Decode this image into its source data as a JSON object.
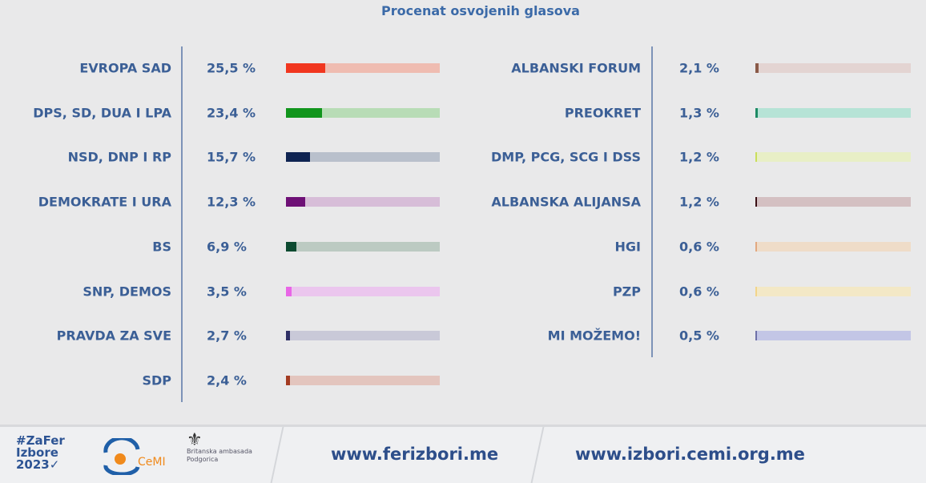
{
  "title": "Procenat osvojenih glasova",
  "chart_data": {
    "type": "bar",
    "title": "Procenat osvojenih glasova",
    "xlim": [
      0,
      100
    ],
    "unit": "%",
    "series": [
      {
        "category": "EVROPA SAD",
        "value": 25.5,
        "label": "25,5 %",
        "color": "#f1361f",
        "track": "#efbcb1"
      },
      {
        "category": "DPS, SD, DUA I LPA",
        "value": 23.4,
        "label": "23,4 %",
        "color": "#11951c",
        "track": "#b8dcb6"
      },
      {
        "category": "NSD, DNP I RP",
        "value": 15.7,
        "label": "15,7 %",
        "color": "#0f2452",
        "track": "#b9c0cc"
      },
      {
        "category": "DEMOKRATE I URA",
        "value": 12.3,
        "label": "12,3 %",
        "color": "#6e1076",
        "track": "#d7bdd8"
      },
      {
        "category": "BS",
        "value": 6.9,
        "label": "6,9 %",
        "color": "#0c4a30",
        "track": "#bccac2"
      },
      {
        "category": "SNP, DEMOS",
        "value": 3.5,
        "label": "3,5 %",
        "color": "#e866e6",
        "track": "#ebc6ee"
      },
      {
        "category": "PRAVDA ZA SVE",
        "value": 2.7,
        "label": "2,7 %",
        "color": "#2f3066",
        "track": "#c9c9d8"
      },
      {
        "category": "SDP",
        "value": 2.4,
        "label": "2,4 %",
        "color": "#a33b22",
        "track": "#e3c5be"
      },
      {
        "category": "ALBANSKI FORUM",
        "value": 2.1,
        "label": "2,1 %",
        "color": "#8a5a48",
        "track": "#e3d4d2"
      },
      {
        "category": "PREOKRET",
        "value": 1.3,
        "label": "1,3 %",
        "color": "#1d8a64",
        "track": "#b6e3d6"
      },
      {
        "category": "DMP, PCG, SCG I DSS",
        "value": 1.2,
        "label": "1,2 %",
        "color": "#c9de5c",
        "track": "#e8efc6"
      },
      {
        "category": "ALBANSKA ALIJANSA",
        "value": 1.2,
        "label": "1,2 %",
        "color": "#3a0f14",
        "track": "#d4c0c2"
      },
      {
        "category": "HGI",
        "value": 0.6,
        "label": "0,6 %",
        "color": "#e2a880",
        "track": "#efdcc8"
      },
      {
        "category": "PZP",
        "value": 0.6,
        "label": "0,6 %",
        "color": "#f2d48a",
        "track": "#f3e8c6"
      },
      {
        "category": "MI MOŽEMO!",
        "value": 0.5,
        "label": "0,5 %",
        "color": "#6e70a8",
        "track": "#c3c6e6"
      }
    ]
  },
  "footer": {
    "logo_zafer": "#ZaFer Izbore 2023",
    "logo_cemi": "CeMI",
    "logo_embassy": "Britanska ambasada Podgorica",
    "url1": "www.ferizbori.me",
    "url2": "www.izbori.cemi.org.me"
  }
}
